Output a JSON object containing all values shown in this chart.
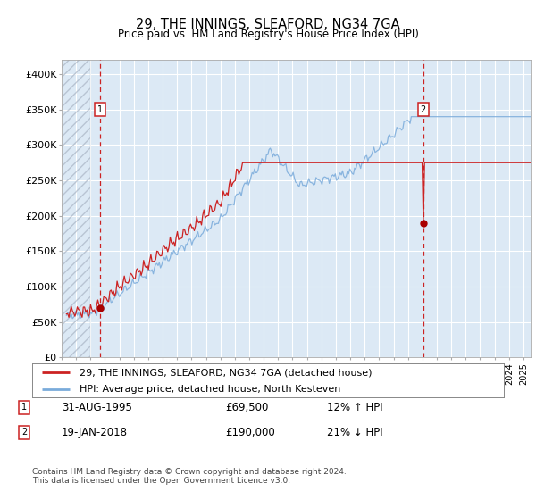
{
  "title": "29, THE INNINGS, SLEAFORD, NG34 7GA",
  "subtitle": "Price paid vs. HM Land Registry's House Price Index (HPI)",
  "legend_line1": "29, THE INNINGS, SLEAFORD, NG34 7GA (detached house)",
  "legend_line2": "HPI: Average price, detached house, North Kesteven",
  "marker1_label": "1",
  "marker1_date": "31-AUG-1995",
  "marker1_price": "£69,500",
  "marker1_hpi": "12% ↑ HPI",
  "marker2_label": "2",
  "marker2_date": "19-JAN-2018",
  "marker2_price": "£190,000",
  "marker2_hpi": "21% ↓ HPI",
  "footer": "Contains HM Land Registry data © Crown copyright and database right 2024.\nThis data is licensed under the Open Government Licence v3.0.",
  "hpi_line_color": "#7aabdb",
  "price_line_color": "#cc2222",
  "marker_color": "#aa0000",
  "vline_color": "#cc2222",
  "plot_bg": "#dce9f5",
  "fig_bg": "#ffffff",
  "ylim": [
    0,
    420000
  ],
  "yticks": [
    0,
    50000,
    100000,
    150000,
    200000,
    250000,
    300000,
    350000,
    400000
  ],
  "ytick_labels": [
    "£0",
    "£50K",
    "£100K",
    "£150K",
    "£200K",
    "£250K",
    "£300K",
    "£350K",
    "£400K"
  ],
  "marker1_x_year": 1995.67,
  "marker1_y": 69500,
  "marker2_x_year": 2018.05,
  "marker2_y": 190000,
  "xlim_left": 1993.0,
  "xlim_right": 2025.5,
  "hatch_end": 1995.0
}
